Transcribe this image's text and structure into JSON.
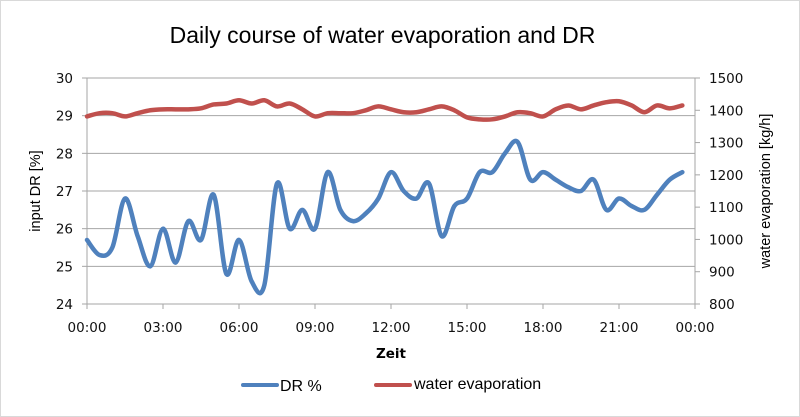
{
  "chart_data": {
    "type": "line",
    "title": "Daily course of water evaporation and DR",
    "xlabel": "Zeit",
    "ylabel": "input DR [%]",
    "y2label": "water evaporation [kg/h]",
    "x_ticks": [
      "00:00",
      "03:00",
      "06:00",
      "09:00",
      "12:00",
      "15:00",
      "18:00",
      "21:00",
      "00:00"
    ],
    "x_range_hours": [
      0,
      24
    ],
    "x_step_hours": 0.5,
    "ylim": [
      24,
      30
    ],
    "y_ticks": [
      "24",
      "25",
      "26",
      "27",
      "28",
      "29",
      "30"
    ],
    "y2lim": [
      800,
      1500
    ],
    "y2_ticks": [
      "800",
      "900",
      "1000",
      "1100",
      "1200",
      "1300",
      "1400",
      "1500"
    ],
    "grid": true,
    "legend_position": "bottom",
    "series": [
      {
        "name": "DR %",
        "axis": "left",
        "color": "#4f81bd",
        "values": [
          25.7,
          25.3,
          25.5,
          26.8,
          25.8,
          25.0,
          26.0,
          25.1,
          26.2,
          25.7,
          26.9,
          24.8,
          25.7,
          24.6,
          24.5,
          27.2,
          26.0,
          26.5,
          26.0,
          27.5,
          26.5,
          26.2,
          26.4,
          26.8,
          27.5,
          27.0,
          26.8,
          27.2,
          25.8,
          26.6,
          26.8,
          27.5,
          27.5,
          28.0,
          28.3,
          27.3,
          27.5,
          27.3,
          27.1,
          27.0,
          27.3,
          26.5,
          26.8,
          26.6,
          26.5,
          26.9,
          27.3,
          27.5
        ]
      },
      {
        "name": "water evaporation",
        "axis": "right",
        "color": "#c0504d",
        "values": [
          1381,
          1391,
          1391,
          1381,
          1391,
          1400,
          1403,
          1403,
          1403,
          1406,
          1418,
          1421,
          1431,
          1421,
          1431,
          1412,
          1421,
          1403,
          1381,
          1391,
          1391,
          1391,
          1400,
          1412,
          1403,
          1394,
          1394,
          1403,
          1412,
          1400,
          1378,
          1372,
          1372,
          1381,
          1394,
          1391,
          1381,
          1403,
          1415,
          1403,
          1415,
          1425,
          1428,
          1415,
          1394,
          1415,
          1406,
          1415
        ]
      }
    ]
  }
}
